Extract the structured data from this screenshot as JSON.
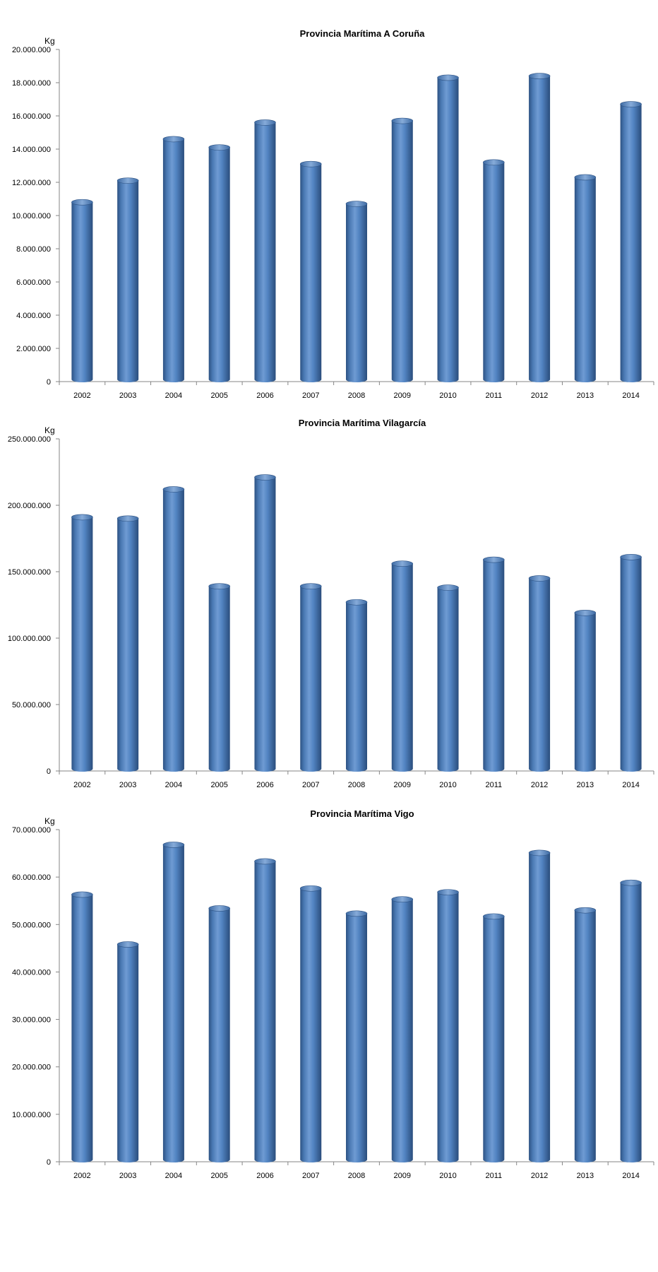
{
  "chart_data": [
    {
      "type": "bar",
      "title": "Provincia Marítima A Coruña",
      "ylabel": "Kg",
      "xlabel": "",
      "categories": [
        "2002",
        "2003",
        "2004",
        "2005",
        "2006",
        "2007",
        "2008",
        "2009",
        "2010",
        "2011",
        "2012",
        "2013",
        "2014"
      ],
      "values": [
        10800000,
        12100000,
        14600000,
        14100000,
        15600000,
        13100000,
        10700000,
        15700000,
        18300000,
        13200000,
        18400000,
        12300000,
        16700000
      ],
      "ylim": [
        0,
        20000000
      ],
      "yticks": [
        0,
        2000000,
        4000000,
        6000000,
        8000000,
        10000000,
        12000000,
        14000000,
        16000000,
        18000000,
        20000000
      ],
      "ytick_labels": [
        "0",
        "2.000.000",
        "4.000.000",
        "6.000.000",
        "8.000.000",
        "10.000.000",
        "12.000.000",
        "14.000.000",
        "16.000.000",
        "18.000.000",
        "20.000.000"
      ],
      "bar_color": "#4f81bd",
      "grid": false
    },
    {
      "type": "bar",
      "title": "Provincia Marítima Vilagarcía",
      "ylabel": "Kg",
      "xlabel": "",
      "categories": [
        "2002",
        "2003",
        "2004",
        "2005",
        "2006",
        "2007",
        "2008",
        "2009",
        "2010",
        "2011",
        "2012",
        "2013",
        "2014"
      ],
      "values": [
        191000000,
        190000000,
        212000000,
        139000000,
        221000000,
        139000000,
        127000000,
        156000000,
        138000000,
        159000000,
        145000000,
        119000000,
        161000000
      ],
      "ylim": [
        0,
        250000000
      ],
      "yticks": [
        0,
        50000000,
        100000000,
        150000000,
        200000000,
        250000000
      ],
      "ytick_labels": [
        "0",
        "50.000.000",
        "100.000.000",
        "150.000.000",
        "200.000.000",
        "250.000.000"
      ],
      "bar_color": "#4f81bd",
      "grid": false
    },
    {
      "type": "bar",
      "title": "Provincia Marítima Vigo",
      "ylabel": "Kg",
      "xlabel": "",
      "categories": [
        "2002",
        "2003",
        "2004",
        "2005",
        "2006",
        "2007",
        "2008",
        "2009",
        "2010",
        "2011",
        "2012",
        "2013",
        "2014"
      ],
      "values": [
        56300000,
        45800000,
        66800000,
        53400000,
        63300000,
        57600000,
        52300000,
        55300000,
        56800000,
        51700000,
        65100000,
        53000000,
        58800000
      ],
      "ylim": [
        0,
        70000000
      ],
      "yticks": [
        0,
        10000000,
        20000000,
        30000000,
        40000000,
        50000000,
        60000000,
        70000000
      ],
      "ytick_labels": [
        "0",
        "10.000.000",
        "20.000.000",
        "30.000.000",
        "40.000.000",
        "50.000.000",
        "60.000.000",
        "70.000.000"
      ],
      "bar_color": "#4f81bd",
      "grid": false
    }
  ]
}
